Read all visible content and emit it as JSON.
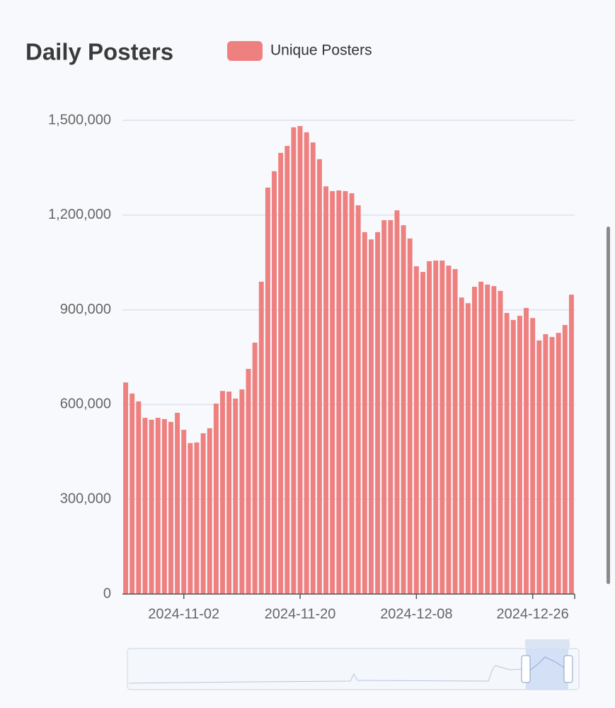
{
  "chart_data": {
    "type": "bar",
    "title": "Daily Posters",
    "series": [
      {
        "name": "Unique Posters",
        "color": "#ee8080",
        "values": [
          670000,
          635000,
          610000,
          558000,
          552000,
          558000,
          554000,
          545000,
          574000,
          520000,
          478000,
          480000,
          509000,
          525000,
          603000,
          643000,
          641000,
          619000,
          648000,
          713000,
          796000,
          989000,
          1287000,
          1339000,
          1397000,
          1419000,
          1478000,
          1482000,
          1462000,
          1430000,
          1377000,
          1291000,
          1276000,
          1278000,
          1276000,
          1269000,
          1231000,
          1146000,
          1123000,
          1146000,
          1184000,
          1184000,
          1215000,
          1168000,
          1126000,
          1038000,
          1020000,
          1054000,
          1056000,
          1056000,
          1040000,
          1029000,
          939000,
          921000,
          973000,
          989000,
          980000,
          975000,
          960000,
          890000,
          868000,
          881000,
          906000,
          874000,
          803000,
          823000,
          814000,
          827000,
          852000,
          948000
        ]
      }
    ],
    "categories": [
      null,
      null,
      null,
      null,
      null,
      null,
      null,
      null,
      null,
      "2024-11-02",
      null,
      null,
      null,
      null,
      null,
      null,
      null,
      null,
      null,
      null,
      null,
      null,
      null,
      null,
      null,
      null,
      null,
      "2024-11-20",
      null,
      null,
      null,
      null,
      null,
      null,
      null,
      null,
      null,
      null,
      null,
      null,
      null,
      null,
      null,
      null,
      null,
      "2024-12-08",
      null,
      null,
      null,
      null,
      null,
      null,
      null,
      null,
      null,
      null,
      null,
      null,
      null,
      null,
      null,
      null,
      null,
      "2024-12-26",
      null,
      null,
      null,
      null,
      null,
      null
    ],
    "ylim": [
      0,
      1500000
    ],
    "yticks": [
      0,
      {
        "value": 300000,
        "label": "300,000"
      },
      {
        "value": 600000,
        "label": "600,000"
      },
      {
        "value": 900000,
        "label": "900,000"
      },
      {
        "value": 1200000,
        "label": "1,200,000"
      },
      {
        "value": 1500000,
        "label": "1,500,000"
      }
    ],
    "grid": true,
    "legend": "top"
  }
}
